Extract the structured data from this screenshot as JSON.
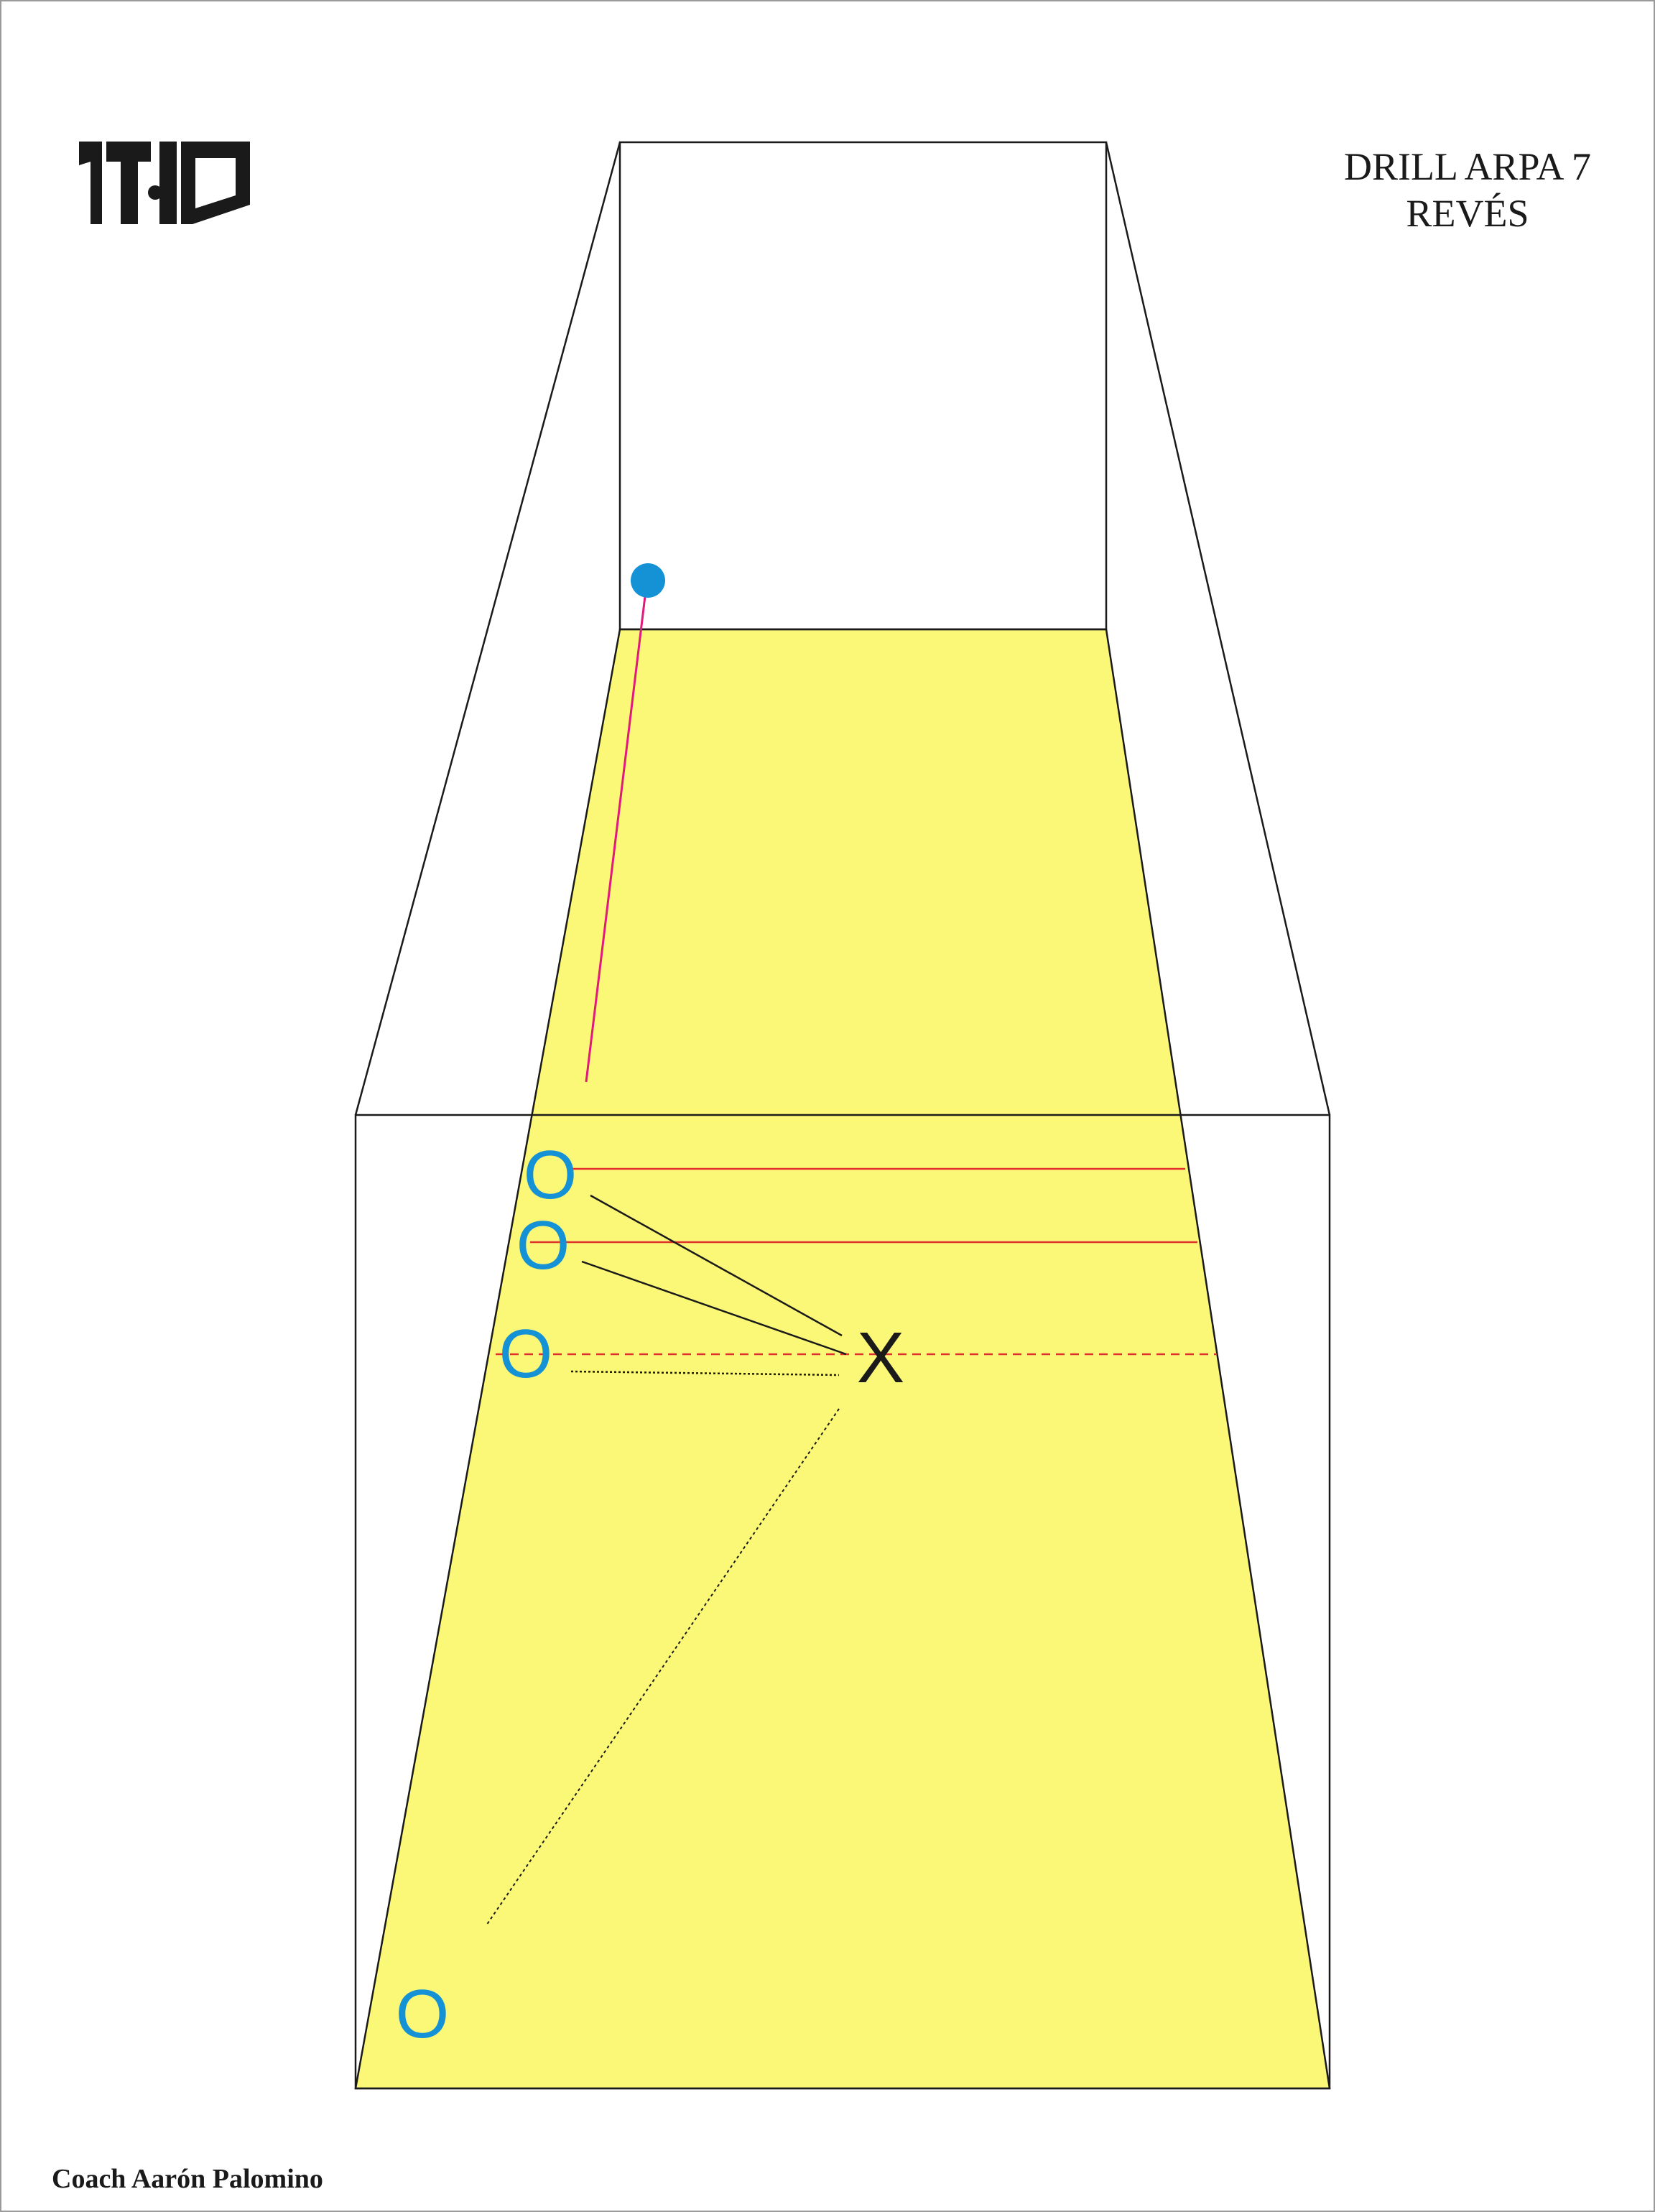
{
  "header": {
    "title_line1": "DRILL ARPA 7",
    "title_line2": "REVÉS",
    "logo_text": "1T10"
  },
  "footer": {
    "credit": "Coach Aarón Palomino"
  },
  "players": {
    "symbol_o": "O",
    "symbol_x": "X"
  },
  "colors": {
    "court_floor": "#fcf877",
    "player": "#1591d6",
    "ball": "#1591d6",
    "line": "#1a1a1a",
    "ball_path": "#e0197a",
    "lane_lines": "#e03030"
  }
}
